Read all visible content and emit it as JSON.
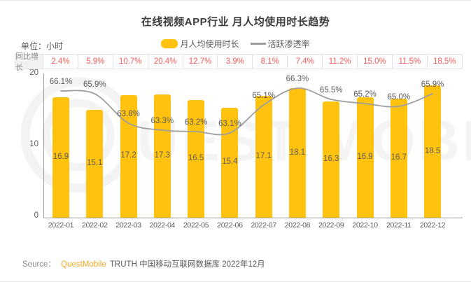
{
  "title": "在线视频APP行业 月人均使用时长趋势",
  "unit_label": "单位：小时",
  "legend": {
    "bar_label": "月人均使用时长",
    "line_label": "活跃渗透率"
  },
  "growth_row": {
    "header": "同比增长",
    "values": [
      "2.4%",
      "5.9%",
      "10.7%",
      "20.4%",
      "12.7%",
      "3.9%",
      "8.1%",
      "7.4%",
      "11.2%",
      "15.0%",
      "11.5%",
      "18.5%"
    ]
  },
  "footer": {
    "source_label": "Source：",
    "brand": "QuestMobile",
    "text": "TRUTH 中国移动互联网数据库 2022年12月"
  },
  "watermark_text": "UEST MOBILE",
  "colors": {
    "bar": "#FFC20E",
    "line": "#9e9e9e",
    "growth_value": "#f75c5c",
    "brand_orange": "#f9a825",
    "watermark": "#f3f3f3"
  },
  "chart_data": {
    "type": "bar+line combo",
    "title": "在线视频APP行业 月人均使用时长趋势",
    "categories": [
      "2022-01",
      "2022-02",
      "2022-03",
      "2022-04",
      "2022-05",
      "2022-06",
      "2022-07",
      "2022-08",
      "2022-09",
      "2022-10",
      "2022-11",
      "2022-12"
    ],
    "series": [
      {
        "name": "月人均使用时长",
        "type": "bar",
        "unit": "小时",
        "values": [
          16.9,
          15.1,
          17.2,
          17.3,
          16.5,
          15.4,
          17.1,
          18.1,
          16.3,
          16.9,
          16.7,
          18.5
        ]
      },
      {
        "name": "活跃渗透率",
        "type": "line",
        "unit": "%",
        "values": [
          66.1,
          65.9,
          63.8,
          63.3,
          63.2,
          63.1,
          65.1,
          66.3,
          65.5,
          65.2,
          65.0,
          65.9
        ]
      }
    ],
    "yoy_growth_percent": [
      2.4,
      5.9,
      10.7,
      20.4,
      12.7,
      3.9,
      8.1,
      7.4,
      11.2,
      15.0,
      11.5,
      18.5
    ],
    "y_axis": {
      "ticks": [
        0,
        10,
        20
      ],
      "min": 0,
      "max": 20
    },
    "legend_position": "top-center",
    "grid": false
  }
}
